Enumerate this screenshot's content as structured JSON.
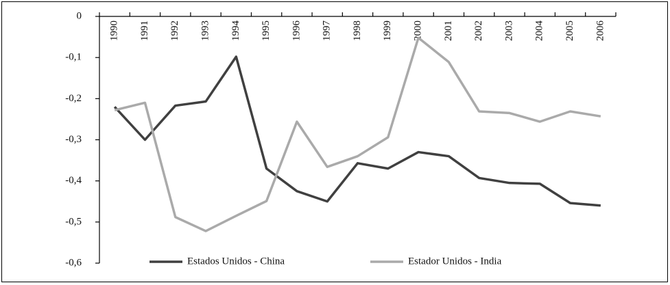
{
  "chart_data": {
    "type": "line",
    "categories": [
      "1990",
      "1991",
      "1992",
      "1993",
      "1994",
      "1995",
      "1996",
      "1997",
      "1998",
      "1999",
      "2000",
      "2001",
      "2002",
      "2003",
      "2004",
      "2005",
      "2006"
    ],
    "series": [
      {
        "name": "Estados Unidos - China",
        "color": "#404040",
        "values": [
          -0.22,
          -0.3,
          -0.217,
          -0.207,
          -0.098,
          -0.37,
          -0.425,
          -0.45,
          -0.357,
          -0.37,
          -0.33,
          -0.34,
          -0.393,
          -0.405,
          -0.407,
          -0.454,
          -0.46
        ]
      },
      {
        "name": "Estador Unidos - India",
        "color": "#aaaaaa",
        "values": [
          -0.228,
          -0.21,
          -0.488,
          -0.522,
          -0.485,
          -0.449,
          -0.256,
          -0.366,
          -0.34,
          -0.294,
          -0.052,
          -0.111,
          -0.231,
          -0.235,
          -0.256,
          -0.231,
          -0.243
        ]
      }
    ],
    "ylim": [
      -0.6,
      0
    ],
    "yticks": [
      0,
      {
        "value": -0.1,
        "label": "-0,1"
      },
      {
        "value": -0.2,
        "label": "-0,2"
      },
      {
        "value": -0.3,
        "label": "-0,3"
      },
      {
        "value": -0.4,
        "label": "-0,4"
      },
      {
        "value": -0.5,
        "label": "-0,5"
      },
      {
        "value": -0.6,
        "label": "-0,6"
      }
    ],
    "legend": "bottom"
  }
}
